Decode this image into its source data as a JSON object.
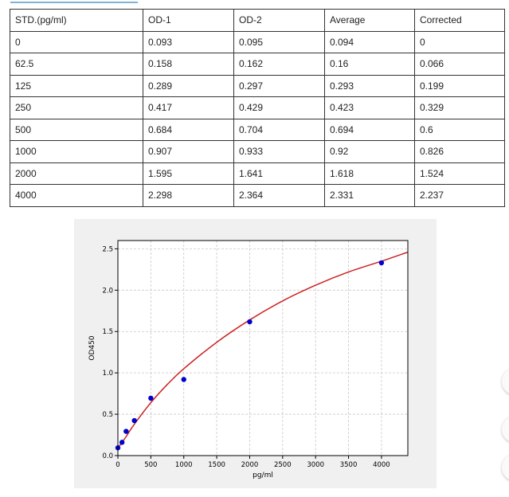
{
  "table": {
    "headers": [
      "STD.(pg/ml)",
      "OD-1",
      "OD-2",
      "Average",
      "Corrected"
    ],
    "rows": [
      [
        "0",
        "0.093",
        "0.095",
        "0.094",
        "0"
      ],
      [
        "62.5",
        "0.158",
        "0.162",
        "0.16",
        "0.066"
      ],
      [
        "125",
        "0.289",
        "0.297",
        "0.293",
        "0.199"
      ],
      [
        "250",
        "0.417",
        "0.429",
        "0.423",
        "0.329"
      ],
      [
        "500",
        "0.684",
        "0.704",
        "0.694",
        "0.6"
      ],
      [
        "1000",
        "0.907",
        "0.933",
        "0.92",
        "0.826"
      ],
      [
        "2000",
        "1.595",
        "1.641",
        "1.618",
        "1.524"
      ],
      [
        "4000",
        "2.298",
        "2.364",
        "2.331",
        "2.237"
      ]
    ]
  },
  "chart_data": {
    "type": "scatter",
    "title": "",
    "xlabel": "pg/ml",
    "ylabel": "OD450",
    "xlim": [
      0,
      4400
    ],
    "ylim": [
      0,
      2.6
    ],
    "xticks": [
      0,
      500,
      1000,
      1500,
      2000,
      2500,
      3000,
      3500,
      4000
    ],
    "yticks": [
      0.0,
      0.5,
      1.0,
      1.5,
      2.0,
      2.5
    ],
    "ytick_labels": [
      "0.0",
      "0.5",
      "1.0",
      "1.5",
      "2.0",
      "2.5"
    ],
    "grid": true,
    "series": [
      {
        "kind": "points",
        "color": "#0000cc",
        "x": [
          0,
          62.5,
          125,
          250,
          500,
          1000,
          2000,
          4000
        ],
        "y": [
          0.094,
          0.16,
          0.293,
          0.423,
          0.694,
          0.92,
          1.618,
          2.331
        ]
      },
      {
        "kind": "fit-curve",
        "color": "#cc2222",
        "x": [
          0,
          62.5,
          125,
          250,
          500,
          750,
          1000,
          1500,
          2000,
          2500,
          3000,
          3500,
          4000,
          4400
        ],
        "y": [
          0.09,
          0.16,
          0.23,
          0.38,
          0.64,
          0.86,
          1.05,
          1.37,
          1.64,
          1.87,
          2.06,
          2.22,
          2.35,
          2.46
        ]
      }
    ]
  }
}
